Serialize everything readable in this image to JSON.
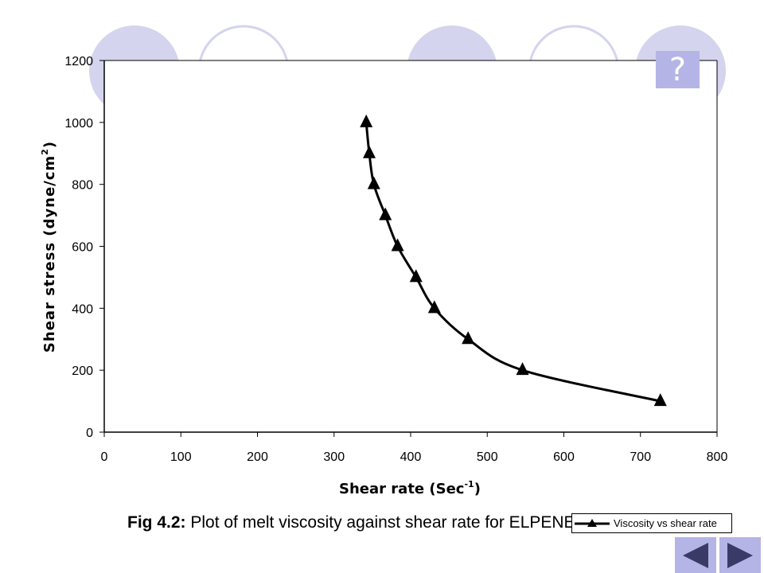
{
  "help_label": "?",
  "caption": {
    "prefix": "Fig 4.2:",
    "text": " Plot of melt viscosity against shear rate for ELPENE"
  },
  "colors": {
    "accent": "#b4b4e6",
    "line": "#000000"
  },
  "icons": {
    "help": "question-mark",
    "prev": "triangle-left",
    "next": "triangle-right"
  },
  "chart_data": {
    "type": "line",
    "title": "",
    "xlabel": "Shear rate (Sec",
    "xlabel_superscript": "-1",
    "xlabel_close": ")",
    "ylabel": "Shear stress (dyne/cm",
    "ylabel_superscript": "2",
    "ylabel_close": ")",
    "xlim": [
      0,
      800
    ],
    "ylim": [
      0,
      1200
    ],
    "xticks": [
      0,
      100,
      200,
      300,
      400,
      500,
      600,
      700,
      800
    ],
    "yticks": [
      0,
      200,
      400,
      600,
      800,
      1000,
      1200
    ],
    "grid": false,
    "legend_position": "bottom-right",
    "series": [
      {
        "name": "Viscosity vs shear rate",
        "marker": "triangle",
        "smooth": true,
        "x": [
          342,
          346,
          352,
          367,
          383,
          407,
          431,
          475,
          546,
          726
        ],
        "y": [
          1000,
          900,
          800,
          700,
          600,
          500,
          400,
          300,
          200,
          100
        ]
      }
    ]
  }
}
